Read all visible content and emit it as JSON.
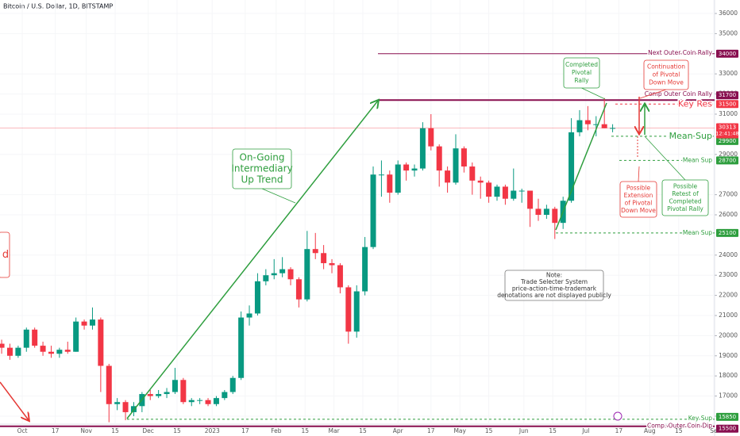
{
  "chart_data": {
    "type": "candlestick",
    "title": "Bitcoin / U.S. Dollar, 1D, BITSTAMP",
    "up_color": "#089981",
    "down_color": "#f23645",
    "x": [
      -10,
      -6,
      -2,
      2,
      6,
      10,
      14,
      18,
      22,
      26,
      30,
      34,
      38,
      42,
      46,
      50,
      54,
      58,
      62,
      66,
      70,
      74,
      78,
      82,
      86,
      90,
      94,
      98,
      102,
      106,
      110,
      114,
      118,
      122,
      126,
      130,
      134,
      138,
      142,
      146,
      150,
      154,
      158,
      162,
      166,
      170,
      174,
      178,
      182,
      186,
      190,
      194,
      198,
      202,
      206,
      210,
      214,
      218,
      222,
      226,
      230,
      234,
      238,
      242,
      246,
      250,
      254,
      258,
      262,
      266,
      270,
      274,
      278,
      282,
      286
    ],
    "ohlc": [
      [
        19600,
        19800,
        19100,
        19400
      ],
      [
        19400,
        19600,
        18800,
        19000
      ],
      [
        19000,
        19500,
        18900,
        19400
      ],
      [
        19400,
        20400,
        19200,
        20300
      ],
      [
        20300,
        20400,
        19400,
        19500
      ],
      [
        19500,
        19700,
        19000,
        19200
      ],
      [
        19200,
        19500,
        18900,
        19100
      ],
      [
        19100,
        19400,
        18900,
        19300
      ],
      [
        19300,
        19700,
        19100,
        19200
      ],
      [
        19200,
        20900,
        19200,
        20700
      ],
      [
        20700,
        20800,
        20300,
        20500
      ],
      [
        20500,
        21400,
        20300,
        20800
      ],
      [
        20800,
        20900,
        17200,
        18500
      ],
      [
        18500,
        18600,
        15700,
        16600
      ],
      [
        16600,
        16900,
        16300,
        16700
      ],
      [
        16700,
        16800,
        15800,
        16200
      ],
      [
        16200,
        16700,
        16000,
        16500
      ],
      [
        16500,
        17200,
        16200,
        17100
      ],
      [
        17100,
        17300,
        16800,
        17000
      ],
      [
        17000,
        17300,
        16900,
        17100
      ],
      [
        17100,
        17400,
        16900,
        17200
      ],
      [
        17200,
        18400,
        17100,
        17800
      ],
      [
        17800,
        17900,
        16600,
        16700
      ],
      [
        16700,
        16900,
        16500,
        16800
      ],
      [
        16800,
        16900,
        16600,
        16800
      ],
      [
        16800,
        16900,
        16500,
        16600
      ],
      [
        16600,
        17000,
        16500,
        16900
      ],
      [
        16900,
        17300,
        16800,
        17200
      ],
      [
        17200,
        18000,
        17100,
        17900
      ],
      [
        17900,
        21200,
        17800,
        20900
      ],
      [
        20900,
        21500,
        20500,
        21100
      ],
      [
        21100,
        23100,
        21000,
        22700
      ],
      [
        22700,
        23300,
        22500,
        23000
      ],
      [
        23000,
        23800,
        22800,
        23100
      ],
      [
        23100,
        23900,
        22900,
        23300
      ],
      [
        23300,
        23400,
        22500,
        22800
      ],
      [
        22800,
        22900,
        21400,
        21800
      ],
      [
        21800,
        25200,
        21700,
        24300
      ],
      [
        24300,
        25100,
        23800,
        24100
      ],
      [
        24100,
        24500,
        23300,
        23600
      ],
      [
        23600,
        23800,
        23100,
        23500
      ],
      [
        23500,
        23600,
        22100,
        22400
      ],
      [
        22400,
        22500,
        19600,
        20200
      ],
      [
        20200,
        22500,
        19900,
        22200
      ],
      [
        22200,
        24900,
        22000,
        24400
      ],
      [
        24400,
        28400,
        24300,
        28000
      ],
      [
        28000,
        28700,
        26900,
        28000
      ],
      [
        28000,
        28200,
        26600,
        27100
      ],
      [
        27100,
        28700,
        27000,
        28500
      ],
      [
        28500,
        28600,
        27700,
        28200
      ],
      [
        28200,
        28500,
        27900,
        28300
      ],
      [
        28300,
        30600,
        28200,
        30300
      ],
      [
        30300,
        31000,
        29200,
        29400
      ],
      [
        29400,
        29500,
        27400,
        28200
      ],
      [
        28200,
        28400,
        27100,
        27600
      ],
      [
        27600,
        30000,
        27500,
        29300
      ],
      [
        29300,
        29400,
        28100,
        28400
      ],
      [
        28400,
        28600,
        27000,
        27700
      ],
      [
        27700,
        27900,
        26800,
        27600
      ],
      [
        27600,
        27700,
        26600,
        26900
      ],
      [
        26900,
        27500,
        26700,
        27400
      ],
      [
        27400,
        27500,
        26500,
        26800
      ],
      [
        26800,
        28300,
        26700,
        27200
      ],
      [
        27200,
        27300,
        26600,
        27200
      ],
      [
        27200,
        27200,
        25400,
        26300
      ],
      [
        26300,
        26800,
        25700,
        26000
      ],
      [
        26000,
        26500,
        25800,
        26300
      ],
      [
        26300,
        26400,
        24800,
        25600
      ],
      [
        25600,
        26900,
        25300,
        26700
      ],
      [
        26700,
        30800,
        26600,
        30100
      ],
      [
        30100,
        31200,
        29900,
        30700
      ],
      [
        30700,
        31400,
        30200,
        30500
      ],
      [
        30500,
        30900,
        29900,
        30500
      ],
      [
        30500,
        31800,
        30300,
        30300
      ],
      [
        30300,
        30500,
        30100,
        30313
      ]
    ],
    "xlim": [
      -10.8,
      335.4
    ],
    "xticks": [
      {
        "value": 0,
        "label": "Oct"
      },
      {
        "value": 16,
        "label": "17"
      },
      {
        "value": 31,
        "label": "Nov"
      },
      {
        "value": 45,
        "label": "15"
      },
      {
        "value": 61,
        "label": "Dec"
      },
      {
        "value": 75,
        "label": "15"
      },
      {
        "value": 92,
        "label": "2023"
      },
      {
        "value": 108,
        "label": "17"
      },
      {
        "value": 123,
        "label": "Feb"
      },
      {
        "value": 137,
        "label": "15"
      },
      {
        "value": 151,
        "label": "Mar"
      },
      {
        "value": 165,
        "label": "15"
      },
      {
        "value": 182,
        "label": "Apr"
      },
      {
        "value": 198,
        "label": "17"
      },
      {
        "value": 212,
        "label": "May"
      },
      {
        "value": 226,
        "label": "15"
      },
      {
        "value": 243,
        "label": "Jun"
      },
      {
        "value": 257,
        "label": "15"
      },
      {
        "value": 273,
        "label": "Jul"
      },
      {
        "value": 289,
        "label": "17"
      },
      {
        "value": 304,
        "label": "Aug"
      },
      {
        "value": 318,
        "label": "15"
      },
      {
        "value": 335,
        "label": "Se"
      }
    ],
    "ylim": [
      15016,
      36669
    ],
    "yticks": [
      16000,
      17000,
      18000,
      19000,
      20000,
      21000,
      22000,
      23000,
      24000,
      26000,
      27000,
      29000,
      31000,
      32000,
      33000,
      35000,
      36000
    ],
    "last_price": 30313,
    "countdown": "12:41:48",
    "levels": [
      {
        "name": "Next Outer Coin Rally",
        "value": 34000,
        "color": "#880e4f"
      },
      {
        "name": "Comp Outer Coin Rally",
        "value": 31700,
        "color": "#880e4f"
      },
      {
        "name": "Key Res",
        "value": 31500,
        "color": "#f23645"
      },
      {
        "name": "Mean Sup",
        "value": 29900,
        "color": "#2e9e3e"
      },
      {
        "name": "Mean Sup",
        "value": 28700,
        "color": "#2e9e3e"
      },
      {
        "name": "Mean Sup",
        "value": 25100,
        "color": "#2e9e3e"
      },
      {
        "name": "Key Sup",
        "value": 15850,
        "color": "#2e9e3e"
      },
      {
        "name": "Comp. Outer Coin Dip",
        "value": 15500,
        "color": "#880e4f"
      }
    ],
    "annotations": [
      {
        "lines": [
          "On-Going",
          "Intermediary",
          "Up Trend"
        ],
        "color": "#2e9e3e"
      },
      {
        "lines": [
          "Completed",
          "Pivotal",
          "Rally"
        ],
        "color": "#2e9e3e"
      },
      {
        "lines": [
          "Continuation",
          "of Pivotal",
          "Down Move"
        ],
        "color": "#e53935"
      },
      {
        "lines": [
          "Possible",
          "Extension",
          "of Pivotal",
          "Down Move"
        ],
        "color": "#e53935"
      },
      {
        "lines": [
          "Possible",
          "Retest of",
          "Completed",
          "Pivotal Rally"
        ],
        "color": "#2e9e3e"
      },
      {
        "lines": [
          "Note:",
          "Trade Selecter System",
          "price-action-time-trademark",
          "denotations are not displayed publicly"
        ],
        "color": "#333333"
      },
      {
        "lines": [
          "d"
        ],
        "color": "#e53935"
      }
    ]
  }
}
